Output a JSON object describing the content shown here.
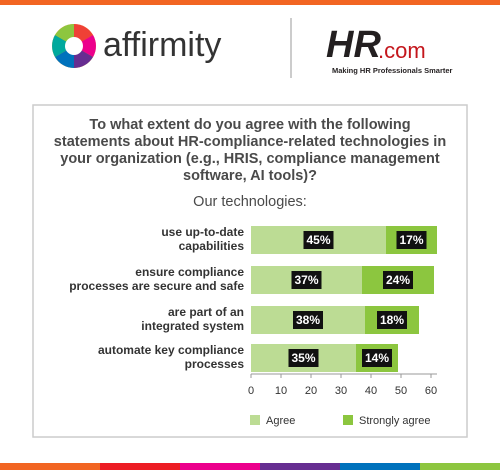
{
  "header": {
    "left_logo": "affirmity",
    "right_logo": "HR",
    "right_logo_suffix": ".com",
    "tagline": "Making HR Professionals Smarter"
  },
  "chart_data": {
    "type": "stacked-bar-horizontal",
    "title": "To what extent do you agree with the following statements about HR-compliance-related technologies in your organization (e.g., HRIS, compliance management software, AI tools)?",
    "subtitle": "Our technologies:",
    "categories": [
      [
        "use up-to-date",
        "capabilities"
      ],
      [
        "ensure compliance",
        "processes are secure and safe"
      ],
      [
        "are part of an",
        "integrated system"
      ],
      [
        "automate key compliance",
        "processes"
      ]
    ],
    "series": [
      {
        "name": "Agree",
        "color": "#bcdc94",
        "values": [
          45,
          37,
          38,
          35
        ],
        "value_labels": [
          "45%",
          "37%",
          "38%",
          "35%"
        ]
      },
      {
        "name": "Strongly agree",
        "color": "#8cc63f",
        "values": [
          17,
          24,
          18,
          14
        ],
        "value_labels": [
          "17%",
          "24%",
          "18%",
          "14%"
        ]
      }
    ],
    "xlim": [
      0,
      62
    ],
    "xticks": [
      0,
      10,
      20,
      30,
      40,
      50,
      60
    ],
    "legend": "bottom"
  }
}
